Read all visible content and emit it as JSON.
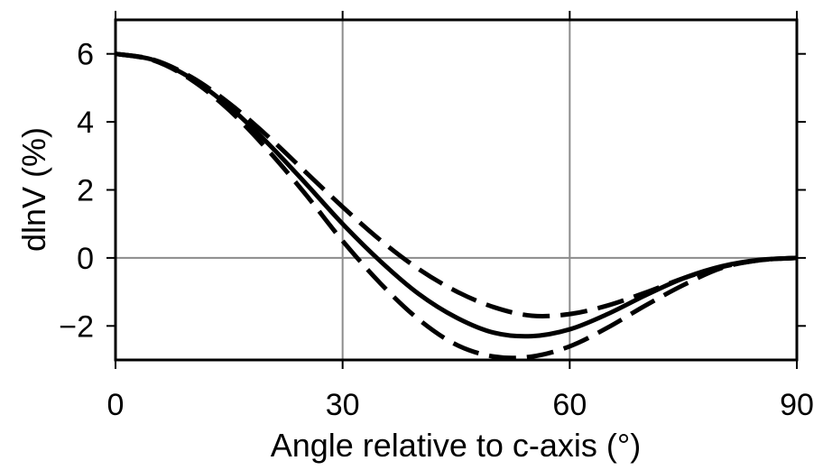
{
  "chart_data": {
    "type": "line",
    "title": "",
    "xlabel": "Angle relative to c-axis (°)",
    "ylabel": "dlnV (%)",
    "xlim": [
      0,
      90
    ],
    "ylim": [
      -3,
      7
    ],
    "xticks": [
      0,
      30,
      60,
      90
    ],
    "xtick_labels": [
      "0",
      "30",
      "60",
      "90"
    ],
    "yticks": [
      -2,
      0,
      2,
      4,
      6
    ],
    "ytick_labels": [
      "−2",
      "0",
      "2",
      "4",
      "6"
    ],
    "grid": true,
    "grid_x": [
      30,
      60
    ],
    "grid_y": [
      0
    ],
    "x": [
      0,
      5,
      10,
      15,
      20,
      25,
      30,
      35,
      40,
      45,
      50,
      55,
      60,
      65,
      70,
      75,
      80,
      85,
      90
    ],
    "series": [
      {
        "style": "solid",
        "color": "#000000",
        "values": [
          6.0,
          5.82,
          5.28,
          4.45,
          3.4,
          2.22,
          1.0,
          -0.1,
          -1.05,
          -1.75,
          -2.2,
          -2.3,
          -2.1,
          -1.65,
          -1.1,
          -0.6,
          -0.25,
          -0.06,
          0.0
        ]
      },
      {
        "style": "dashed",
        "color": "#000000",
        "values": [
          6.0,
          5.83,
          5.32,
          4.55,
          3.6,
          2.55,
          1.5,
          0.52,
          -0.32,
          -0.98,
          -1.45,
          -1.7,
          -1.65,
          -1.4,
          -1.02,
          -0.6,
          -0.27,
          -0.07,
          0.0
        ]
      },
      {
        "style": "dashed",
        "color": "#000000",
        "values": [
          6.0,
          5.81,
          5.24,
          4.35,
          3.2,
          1.9,
          0.5,
          -0.75,
          -1.8,
          -2.55,
          -2.9,
          -2.9,
          -2.6,
          -2.05,
          -1.4,
          -0.8,
          -0.3,
          -0.07,
          0.0
        ]
      }
    ]
  }
}
